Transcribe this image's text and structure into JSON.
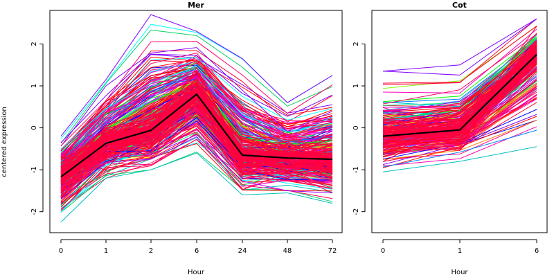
{
  "chart_data": [
    {
      "type": "line",
      "title": "Mer",
      "xlabel": "Hour",
      "ylabel": "centered expression",
      "categories": [
        "0",
        "1",
        "2",
        "6",
        "24",
        "48",
        "72"
      ],
      "ylim": [
        -2.5,
        2.8
      ],
      "yticks": [
        -2,
        -1,
        0,
        1,
        2
      ],
      "grid": false,
      "legend": "none",
      "series": [
        {
          "role": "mean",
          "color": "#000000",
          "values": [
            -1.17,
            -0.37,
            -0.06,
            0.8,
            -0.65,
            -0.72,
            -0.75
          ]
        }
      ],
      "profile_spread": {
        "min": [
          -2.25,
          -1.2,
          -1.0,
          -0.6,
          -1.6,
          -1.55,
          -1.8
        ],
        "max": [
          -0.2,
          1.15,
          2.7,
          2.3,
          1.65,
          0.6,
          1.25
        ]
      },
      "line_colors": "rainbow palette, predominantly red/magenta"
    },
    {
      "type": "line",
      "title": "Cot",
      "xlabel": "Hour",
      "ylabel": "",
      "categories": [
        "0",
        "1",
        "6"
      ],
      "ylim": [
        -2.5,
        2.8
      ],
      "yticks": [
        -2,
        -1,
        0,
        1,
        2
      ],
      "grid": false,
      "legend": "none",
      "series": [
        {
          "role": "mean",
          "color": "#000000",
          "values": [
            -0.2,
            -0.05,
            1.75
          ]
        }
      ],
      "profile_spread": {
        "min": [
          -1.05,
          -0.8,
          -0.45
        ],
        "max": [
          1.35,
          1.5,
          2.6
        ]
      },
      "line_colors": "rainbow palette, predominantly red/magenta"
    }
  ]
}
